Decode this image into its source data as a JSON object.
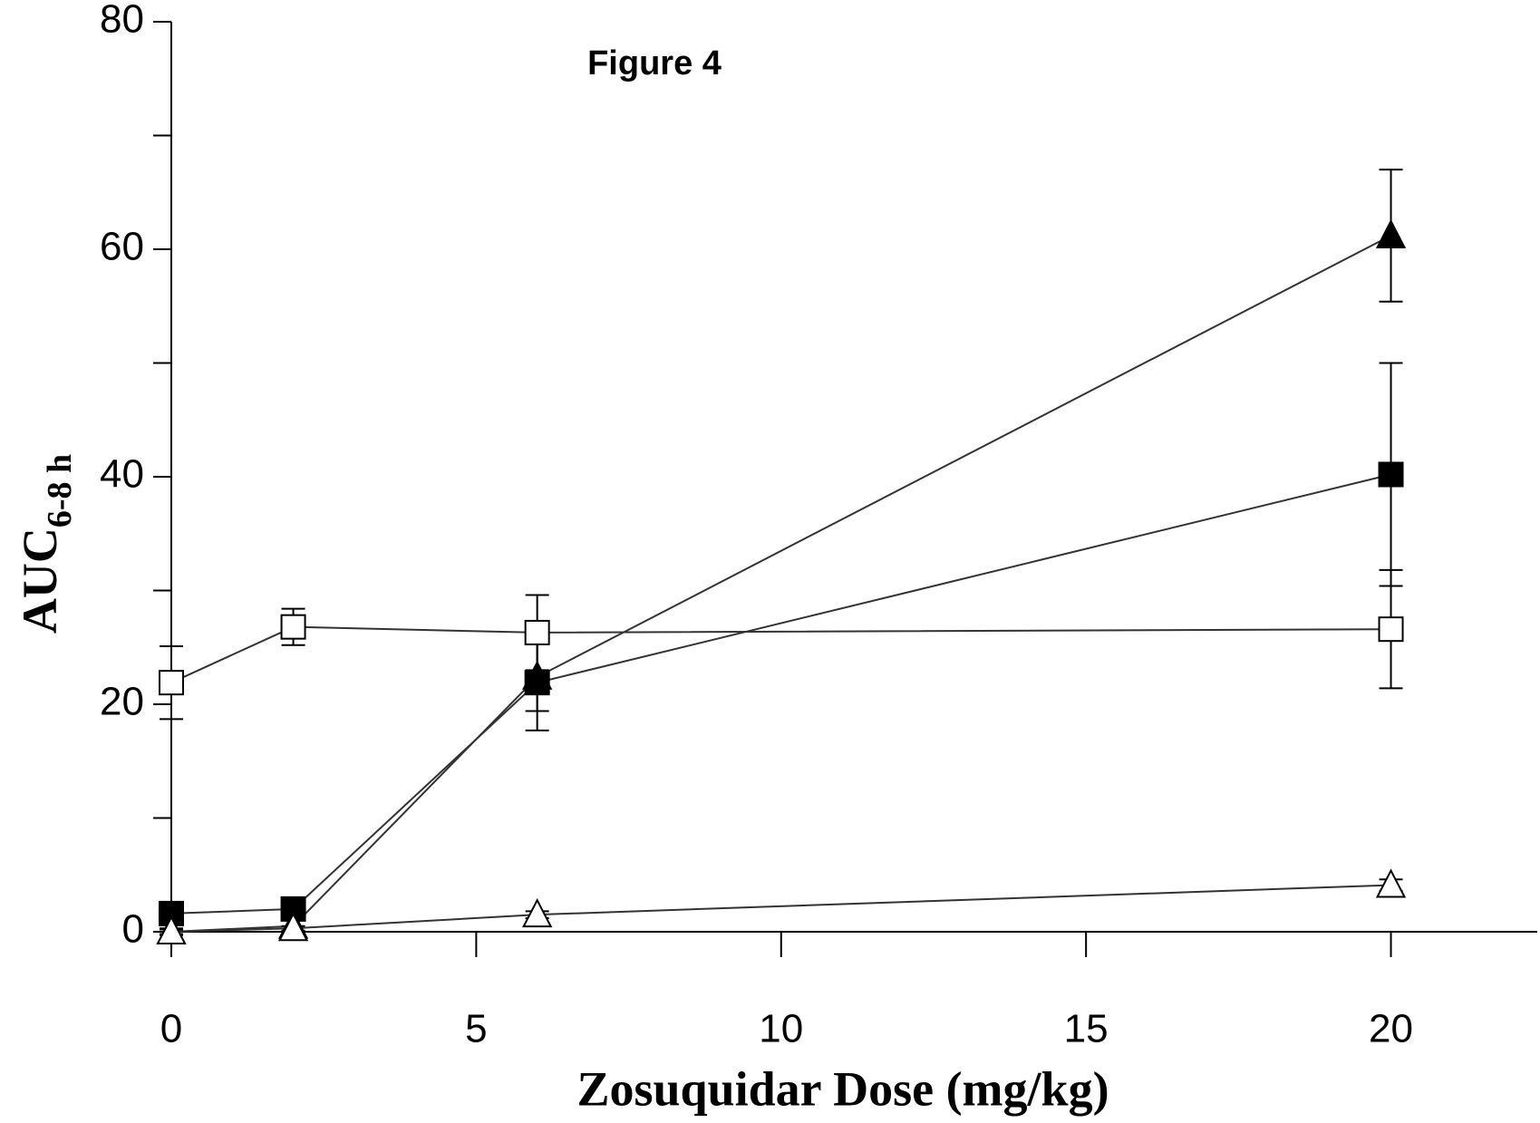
{
  "chart_data": {
    "type": "line",
    "title": "Figure 4",
    "x_label": "Zosuquidar Dose (mg/kg)",
    "y_label": "AUC",
    "y_label_subscript": "6-8 h",
    "xlim": [
      0,
      22.4
    ],
    "xticks": [
      0,
      5,
      10,
      15,
      20
    ],
    "ylim": [
      0,
      80
    ],
    "yticks": [
      0,
      20,
      40,
      60,
      80
    ],
    "yminorticks": [
      10,
      30,
      50,
      70
    ],
    "series": [
      {
        "marker": "square-open",
        "color": "#000000",
        "x": [
          0,
          2,
          6,
          20
        ],
        "values": [
          21.9,
          26.8,
          26.3,
          26.6
        ],
        "errors": [
          3.2,
          1.6,
          3.3,
          5.2
        ]
      },
      {
        "marker": "square-filled",
        "color": "#000000",
        "x": [
          0,
          2,
          6,
          20
        ],
        "values": [
          1.6,
          2.0,
          21.9,
          40.2
        ],
        "errors": [
          0.5,
          0.5,
          4.2,
          9.8
        ]
      },
      {
        "marker": "triangle-filled",
        "color": "#000000",
        "x": [
          0,
          2,
          6,
          20
        ],
        "values": [
          0,
          0.5,
          22.4,
          61.2
        ],
        "errors": [
          0.3,
          0.5,
          3.0,
          5.8
        ]
      },
      {
        "marker": "triangle-open",
        "color": "#000000",
        "x": [
          0,
          2,
          6,
          20
        ],
        "values": [
          0,
          0.3,
          1.5,
          4.1
        ],
        "errors": [
          0.2,
          0.2,
          0.3,
          0.5
        ]
      }
    ]
  }
}
